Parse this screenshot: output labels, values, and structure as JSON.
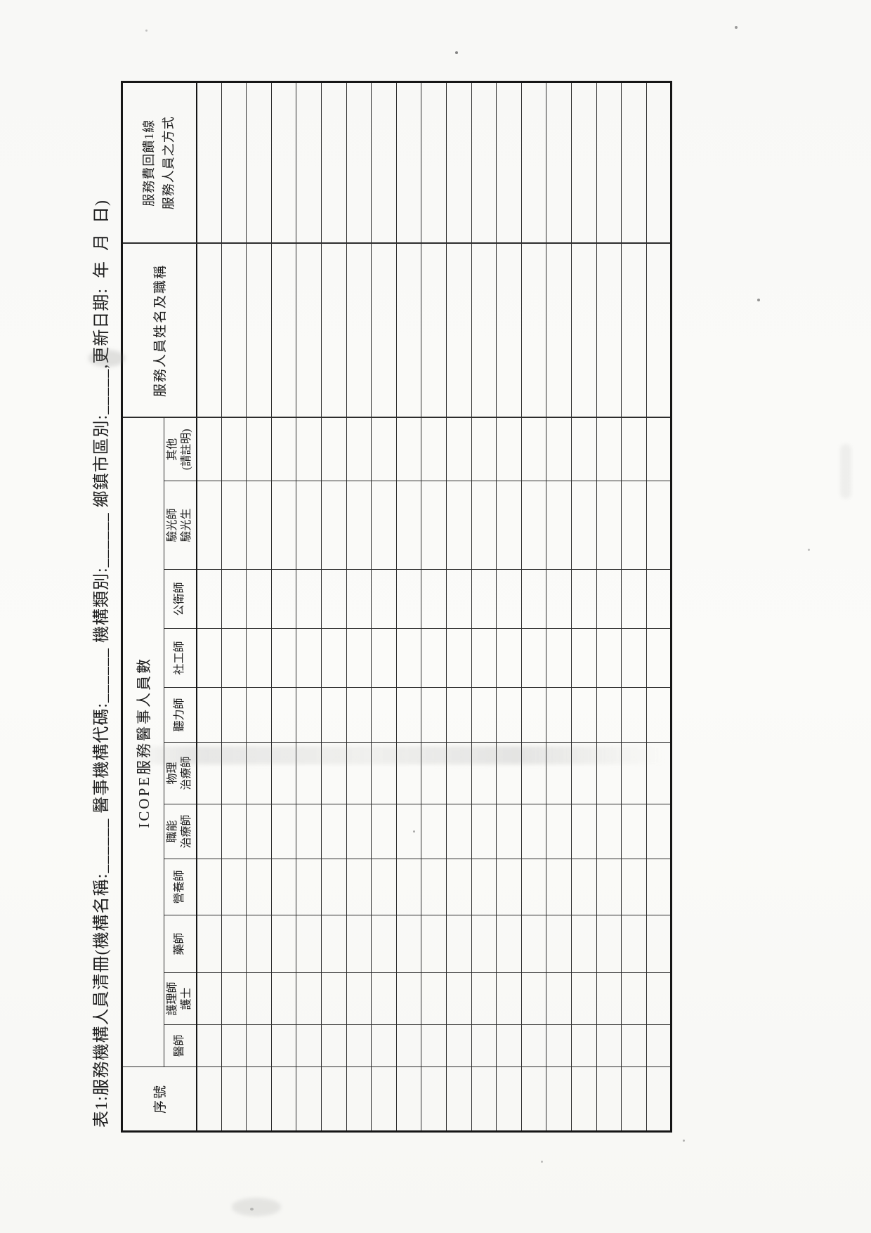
{
  "document": {
    "title": "表1:服務機構人員清冊(機構名稱:______ 醫事機構代碼:______ 機構類別:______ 鄉鎮市區別:_____,更新日期:  年  月  日)"
  },
  "table": {
    "group_header": "ICOPE服務醫事人員數",
    "row_count": 19,
    "columns": [
      {
        "id": "seq",
        "label": "序號"
      },
      {
        "id": "physician",
        "label": "醫師"
      },
      {
        "id": "nurse",
        "label": "護理師\n護士"
      },
      {
        "id": "pharmacist",
        "label": "藥師"
      },
      {
        "id": "dietitian",
        "label": "營養師"
      },
      {
        "id": "occupational-therapist",
        "label": "職能\n治療師"
      },
      {
        "id": "physical-therapist",
        "label": "物理\n治療師"
      },
      {
        "id": "audiologist",
        "label": "聽力師"
      },
      {
        "id": "social-worker",
        "label": "社工師"
      },
      {
        "id": "public-health-specialist",
        "label": "公衛師"
      },
      {
        "id": "optometrist",
        "label": "驗光師\n驗光生"
      },
      {
        "id": "other",
        "label": "其他\n(請註明)"
      },
      {
        "id": "name-title",
        "label": "服務人員姓名及職稱"
      },
      {
        "id": "fee-feedback",
        "label": "服務費回饋1線\n服務人員之方式"
      }
    ],
    "cells": ""
  }
}
